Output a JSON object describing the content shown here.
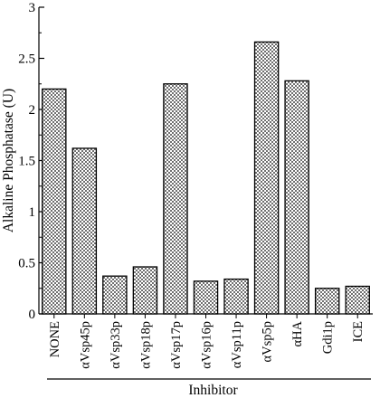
{
  "chart_data": {
    "type": "bar",
    "xlabel": "Inhibitor",
    "ylabel": "Alkaline Phosphatase (U)",
    "ylim": [
      0,
      3
    ],
    "yticks": [
      "0",
      "0.5",
      "1",
      "1.5",
      "2",
      "2.5",
      "3"
    ],
    "grid": false,
    "legend": "none",
    "bar_pattern": "checkered",
    "colors": {
      "bar_fill_light": "#ffffff",
      "bar_fill_dark": "#6f6f6f",
      "stroke": "#000000"
    },
    "categories": [
      "NONE",
      "αVsp45p",
      "αVsp33p",
      "αVsp18p",
      "αVsp17p",
      "αVsp16p",
      "αVsp11p",
      "αVsp5p",
      "αHA",
      "Gdi1p",
      "ICE"
    ],
    "values": [
      2.2,
      1.62,
      0.37,
      0.46,
      2.25,
      0.32,
      0.34,
      2.66,
      2.28,
      0.25,
      0.27
    ]
  }
}
